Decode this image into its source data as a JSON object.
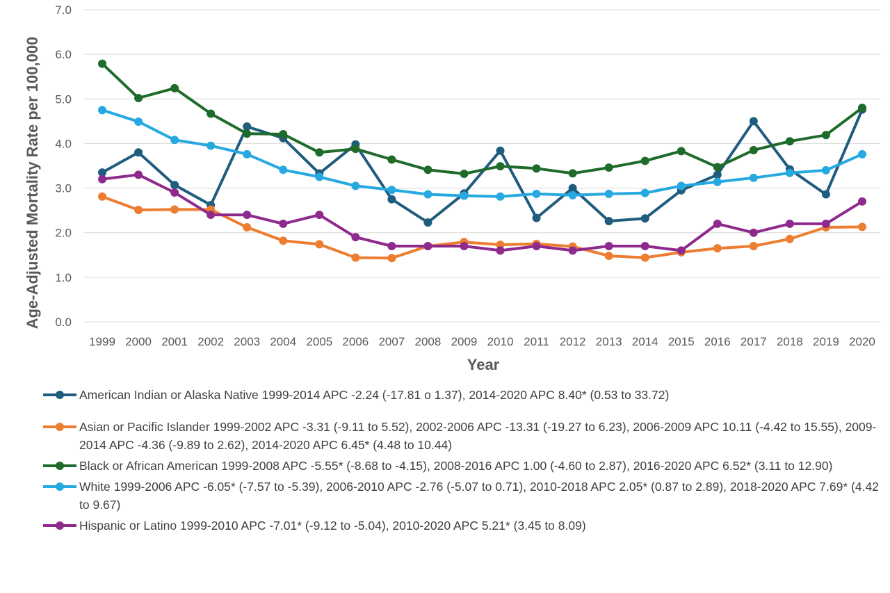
{
  "chart_data": {
    "type": "line",
    "xlabel": "Year",
    "ylabel": "Age-Adjusted Mortality Rate per 100,000",
    "ylim": [
      0,
      7
    ],
    "yticks": [
      "0.0",
      "1.0",
      "2.0",
      "3.0",
      "4.0",
      "5.0",
      "6.0",
      "7.0"
    ],
    "grid": "horizontal",
    "legend_position": "bottom",
    "categories": [
      "1999",
      "2000",
      "2001",
      "2002",
      "2003",
      "2004",
      "2005",
      "2006",
      "2007",
      "2008",
      "2009",
      "2010",
      "2011",
      "2012",
      "2013",
      "2014",
      "2015",
      "2016",
      "2017",
      "2018",
      "2019",
      "2020"
    ],
    "series": [
      {
        "name": "American Indian or Alaska Native 1999-2014 APC -2.24 (-17.81 o 1.37), 2014-2020 APC 8.40* (0.53 to 33.72)",
        "color": "#1f5c7d",
        "values": [
          3.35,
          3.8,
          3.07,
          2.62,
          4.38,
          4.12,
          3.33,
          3.98,
          2.75,
          2.23,
          2.88,
          3.84,
          2.33,
          3.0,
          2.26,
          2.32,
          2.95,
          3.3,
          4.5,
          3.42,
          2.86,
          4.76
        ]
      },
      {
        "name": "Asian or Pacific Islander 1999-2002 APC -3.31 (-9.11 to 5.52), 2002-2006 APC -13.31 (-19.27 to 6.23), 2006-2009 APC 10.11 (-4.42 to 15.55), 2009-2014 APC -4.36 (-9.89 to 2.62), 2014-2020 APC 6.45* (4.48 to 10.44)",
        "color": "#ed7d31",
        "values": [
          2.81,
          2.51,
          2.52,
          2.52,
          2.12,
          1.82,
          1.74,
          1.44,
          1.43,
          1.7,
          1.79,
          1.73,
          1.75,
          1.69,
          1.48,
          1.44,
          1.56,
          1.65,
          1.7,
          1.86,
          2.12,
          2.13
        ]
      },
      {
        "name": "Black or African American 1999-2008 APC -5.55* (-8.68 to -4.15), 2008-2016 APC 1.00 (-4.60 to 2.87), 2016-2020 APC 6.52* (3.11 to 12.90)",
        "color": "#1e6b2a",
        "values": [
          5.79,
          5.02,
          5.24,
          4.67,
          4.22,
          4.21,
          3.8,
          3.88,
          3.64,
          3.41,
          3.32,
          3.49,
          3.44,
          3.33,
          3.46,
          3.61,
          3.83,
          3.47,
          3.85,
          4.05,
          4.19,
          4.8
        ]
      },
      {
        "name": "White 1999-2006 APC -6.05* (-7.57 to -5.39), 2006-2010 APC -2.76 (-5.07 to 0.71), 2010-2018 APC 2.05* (0.87 to 2.89), 2018-2020 APC 7.69* (4.42 to 9.67)",
        "color": "#26a9e0",
        "values": [
          4.75,
          4.49,
          4.08,
          3.95,
          3.76,
          3.41,
          3.25,
          3.05,
          2.96,
          2.86,
          2.83,
          2.81,
          2.87,
          2.84,
          2.87,
          2.89,
          3.05,
          3.14,
          3.23,
          3.34,
          3.4,
          3.76
        ]
      },
      {
        "name": "Hispanic or Latino 1999-2010 APC -7.01* (-9.12 to -5.04), 2010-2020 APC 5.21* (3.45 to 8.09)",
        "color": "#8e2a8e",
        "values": [
          3.2,
          3.3,
          2.9,
          2.4,
          2.4,
          2.2,
          2.4,
          1.9,
          1.7,
          1.7,
          1.7,
          1.6,
          1.7,
          1.6,
          1.7,
          1.7,
          1.6,
          2.2,
          2.0,
          2.2,
          2.2,
          2.7
        ]
      }
    ]
  }
}
